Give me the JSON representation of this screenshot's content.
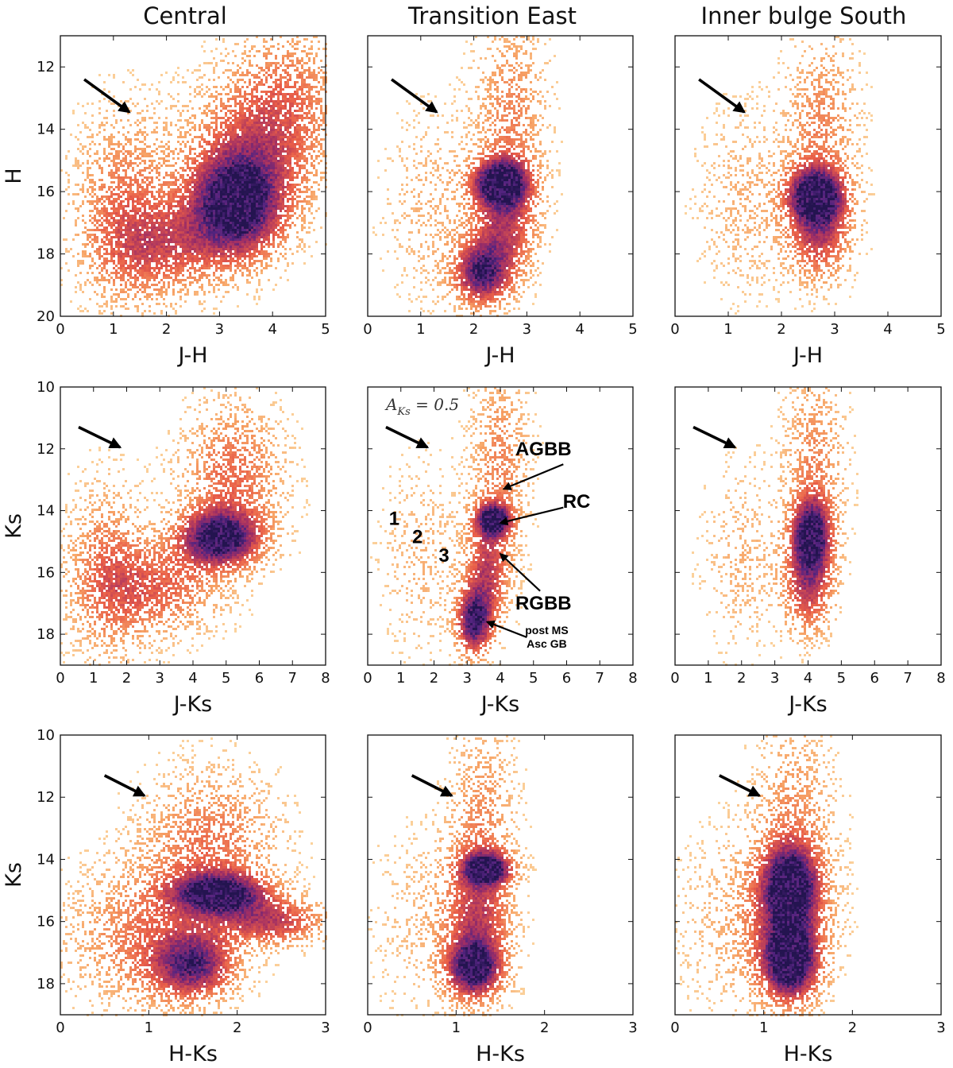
{
  "figure": {
    "columns": [
      "Central",
      "Transition East",
      "Inner bulge South"
    ]
  },
  "colors": {
    "low": "#fbd29d",
    "mid": "#f4843e",
    "high": "#c53a5a",
    "max": "#2a1460",
    "arrow": "#000000"
  },
  "chart_data": [
    {
      "type": "heatmap",
      "region": "Central",
      "row": 0,
      "col": 0,
      "title": "Central",
      "xlabel": "J-H",
      "ylabel": "H",
      "xlim": [
        0,
        5
      ],
      "ylim": [
        20,
        11
      ],
      "xticks": [
        "0",
        "1",
        "2",
        "3",
        "4",
        "5"
      ],
      "xtick_values": [
        0,
        1,
        2,
        3,
        4,
        5
      ],
      "yticks": [
        "12",
        "14",
        "16",
        "18",
        "20"
      ],
      "ytick_values": [
        12,
        14,
        16,
        18,
        20
      ],
      "reddening_vector": {
        "from": [
          0.45,
          12.4
        ],
        "to": [
          1.3,
          13.45
        ]
      },
      "features": [
        {
          "name": "main overdensity",
          "x": 3.3,
          "y": 16.5,
          "dx": 0.6,
          "dy": 1.1,
          "strength": 1.0
        },
        {
          "name": "upper branch",
          "x": 3.6,
          "y": 14.8,
          "dx": 0.8,
          "dy": 1.5,
          "strength": 0.45
        },
        {
          "name": "bright giants",
          "x": 4.3,
          "y": 12.8,
          "dx": 0.7,
          "dy": 1.5,
          "strength": 0.3
        },
        {
          "name": "blue foreground",
          "x": 1.2,
          "y": 16.5,
          "dx": 0.6,
          "dy": 2.0,
          "strength": 0.35
        },
        {
          "name": "intermediate",
          "x": 2.0,
          "y": 17.8,
          "dx": 0.8,
          "dy": 1.0,
          "strength": 0.4
        }
      ]
    },
    {
      "type": "heatmap",
      "region": "Transition East",
      "row": 0,
      "col": 1,
      "title": "Transition East",
      "xlabel": "J-H",
      "ylabel": "",
      "xlim": [
        0,
        5
      ],
      "ylim": [
        20,
        11
      ],
      "xticks": [
        "0",
        "1",
        "2",
        "3",
        "4",
        "5"
      ],
      "xtick_values": [
        0,
        1,
        2,
        3,
        4,
        5
      ],
      "yticks": [],
      "ytick_values": [
        12,
        14,
        16,
        18,
        20
      ],
      "reddening_vector": {
        "from": [
          0.45,
          12.4
        ],
        "to": [
          1.3,
          13.45
        ]
      },
      "features": [
        {
          "name": "red clump",
          "x": 2.5,
          "y": 15.7,
          "dx": 0.35,
          "dy": 0.5,
          "strength": 1.0
        },
        {
          "name": "post MS",
          "x": 2.15,
          "y": 18.6,
          "dx": 0.35,
          "dy": 0.7,
          "strength": 0.85
        },
        {
          "name": "RGB",
          "x": 2.6,
          "y": 17.0,
          "dx": 0.4,
          "dy": 1.2,
          "strength": 0.55
        },
        {
          "name": "upper RGB",
          "x": 2.7,
          "y": 13.5,
          "dx": 0.45,
          "dy": 2.0,
          "strength": 0.3
        },
        {
          "name": "foreground",
          "x": 1.2,
          "y": 16.5,
          "dx": 0.6,
          "dy": 2.0,
          "strength": 0.15
        }
      ]
    },
    {
      "type": "heatmap",
      "region": "Inner bulge South",
      "row": 0,
      "col": 2,
      "title": "Inner bulge South",
      "xlabel": "J-H",
      "ylabel": "",
      "xlim": [
        0,
        5
      ],
      "ylim": [
        20,
        11
      ],
      "xticks": [
        "0",
        "1",
        "2",
        "3",
        "4",
        "5"
      ],
      "xtick_values": [
        0,
        1,
        2,
        3,
        4,
        5
      ],
      "yticks": [],
      "ytick_values": [
        12,
        14,
        16,
        18,
        20
      ],
      "reddening_vector": {
        "from": [
          0.45,
          12.4
        ],
        "to": [
          1.3,
          13.45
        ]
      },
      "features": [
        {
          "name": "red clump",
          "x": 2.65,
          "y": 16.1,
          "dx": 0.35,
          "dy": 0.6,
          "strength": 1.0
        },
        {
          "name": "RGB",
          "x": 2.7,
          "y": 17.3,
          "dx": 0.4,
          "dy": 1.0,
          "strength": 0.55
        },
        {
          "name": "upper RGB",
          "x": 2.75,
          "y": 14.0,
          "dx": 0.45,
          "dy": 2.0,
          "strength": 0.3
        },
        {
          "name": "foreground",
          "x": 1.3,
          "y": 16.3,
          "dx": 0.6,
          "dy": 2.0,
          "strength": 0.15
        }
      ]
    },
    {
      "type": "heatmap",
      "region": "Central",
      "row": 1,
      "col": 0,
      "title": "",
      "xlabel": "J-Ks",
      "ylabel": "Ks",
      "xlim": [
        0,
        8
      ],
      "ylim": [
        19,
        10
      ],
      "xticks": [
        "0",
        "1",
        "2",
        "3",
        "4",
        "5",
        "6",
        "7",
        "8"
      ],
      "xtick_values": [
        0,
        1,
        2,
        3,
        4,
        5,
        6,
        7,
        8
      ],
      "yticks": [
        "10",
        "12",
        "14",
        "16",
        "18"
      ],
      "ytick_values": [
        10,
        12,
        14,
        16,
        18
      ],
      "reddening_vector": {
        "from": [
          0.55,
          11.3
        ],
        "to": [
          1.8,
          11.95
        ]
      },
      "features": [
        {
          "name": "main overdensity",
          "x": 4.8,
          "y": 14.9,
          "dx": 0.8,
          "dy": 0.6,
          "strength": 1.0
        },
        {
          "name": "upper branch",
          "x": 5.2,
          "y": 13.0,
          "dx": 1.0,
          "dy": 1.6,
          "strength": 0.4
        },
        {
          "name": "foreground",
          "x": 1.4,
          "y": 16.0,
          "dx": 0.8,
          "dy": 1.8,
          "strength": 0.35
        },
        {
          "name": "intermediate",
          "x": 3.0,
          "y": 16.5,
          "dx": 1.2,
          "dy": 1.0,
          "strength": 0.4
        }
      ]
    },
    {
      "type": "heatmap",
      "region": "Transition East",
      "row": 1,
      "col": 1,
      "title": "",
      "xlabel": "J-Ks",
      "ylabel": "",
      "xlim": [
        0,
        8
      ],
      "ylim": [
        19,
        10
      ],
      "xticks": [
        "0",
        "1",
        "2",
        "3",
        "4",
        "5",
        "6",
        "7",
        "8"
      ],
      "xtick_values": [
        0,
        1,
        2,
        3,
        4,
        5,
        6,
        7,
        8
      ],
      "yticks": [],
      "ytick_values": [
        10,
        12,
        14,
        16,
        18
      ],
      "reddening_vector": {
        "from": [
          0.55,
          11.3
        ],
        "to": [
          1.8,
          11.95
        ]
      },
      "aks_label": {
        "main": "A",
        "sub": "Ks",
        "rest": " = 0.5"
      },
      "annotations": [
        {
          "label": "AGBB",
          "text_at": [
            5.3,
            12.0
          ],
          "tip": [
            4.1,
            13.3
          ],
          "tail": [
            5.9,
            12.5
          ]
        },
        {
          "label": "RC",
          "text_at": [
            6.3,
            13.7
          ],
          "tip": [
            4.0,
            14.4
          ],
          "tail": [
            5.9,
            13.9
          ]
        },
        {
          "label": "RGBB",
          "text_at": [
            5.3,
            17.0
          ],
          "tip": [
            4.0,
            15.4
          ],
          "tail": [
            5.2,
            16.6
          ]
        },
        {
          "label_lines": [
            "post MS",
            "Asc GB"
          ],
          "text_at": [
            5.4,
            18.0
          ],
          "tip": [
            3.6,
            17.6
          ],
          "tail": [
            4.8,
            18.1
          ]
        }
      ],
      "sequence_labels": [
        {
          "label": "1",
          "at": [
            0.8,
            14.25
          ]
        },
        {
          "label": "2",
          "at": [
            1.5,
            14.85
          ]
        },
        {
          "label": "3",
          "at": [
            2.3,
            15.45
          ]
        }
      ],
      "features": [
        {
          "name": "red clump",
          "x": 3.8,
          "y": 14.3,
          "dx": 0.35,
          "dy": 0.35,
          "strength": 1.0
        },
        {
          "name": "post MS",
          "x": 3.2,
          "y": 17.6,
          "dx": 0.35,
          "dy": 0.7,
          "strength": 0.9
        },
        {
          "name": "RGB",
          "x": 3.6,
          "y": 16.0,
          "dx": 0.45,
          "dy": 1.2,
          "strength": 0.55
        },
        {
          "name": "upper RGB",
          "x": 4.0,
          "y": 12.5,
          "dx": 0.6,
          "dy": 2.0,
          "strength": 0.3
        },
        {
          "name": "foreground",
          "x": 1.6,
          "y": 15.5,
          "dx": 0.8,
          "dy": 2.0,
          "strength": 0.15
        }
      ]
    },
    {
      "type": "heatmap",
      "region": "Inner bulge South",
      "row": 1,
      "col": 2,
      "title": "",
      "xlabel": "J-Ks",
      "ylabel": "",
      "xlim": [
        0,
        8
      ],
      "ylim": [
        19,
        10
      ],
      "xticks": [
        "0",
        "1",
        "2",
        "3",
        "4",
        "5",
        "6",
        "7",
        "8"
      ],
      "xtick_values": [
        0,
        1,
        2,
        3,
        4,
        5,
        6,
        7,
        8
      ],
      "yticks": [],
      "ytick_values": [
        10,
        12,
        14,
        16,
        18
      ],
      "reddening_vector": {
        "from": [
          0.55,
          11.3
        ],
        "to": [
          1.8,
          11.95
        ]
      },
      "features": [
        {
          "name": "red clump",
          "x": 4.1,
          "y": 14.8,
          "dx": 0.4,
          "dy": 0.8,
          "strength": 1.0
        },
        {
          "name": "RGB",
          "x": 4.0,
          "y": 16.5,
          "dx": 0.5,
          "dy": 1.0,
          "strength": 0.55
        },
        {
          "name": "upper RGB",
          "x": 4.2,
          "y": 12.5,
          "dx": 0.6,
          "dy": 2.0,
          "strength": 0.3
        },
        {
          "name": "foreground",
          "x": 2.0,
          "y": 15.5,
          "dx": 0.8,
          "dy": 2.0,
          "strength": 0.15
        }
      ]
    },
    {
      "type": "heatmap",
      "region": "Central",
      "row": 2,
      "col": 0,
      "title": "",
      "xlabel": "H-Ks",
      "ylabel": "Ks",
      "xlim": [
        0,
        3
      ],
      "ylim": [
        19,
        10
      ],
      "xticks": [
        "0",
        "1",
        "2",
        "3"
      ],
      "xtick_values": [
        0,
        1,
        2,
        3
      ],
      "yticks": [
        "10",
        "12",
        "14",
        "16",
        "18"
      ],
      "ytick_values": [
        10,
        12,
        14,
        16,
        18
      ],
      "reddening_vector": {
        "from": [
          0.5,
          11.3
        ],
        "to": [
          0.95,
          11.95
        ]
      },
      "features": [
        {
          "name": "bar feature",
          "x": 1.8,
          "y": 15.1,
          "dx": 0.35,
          "dy": 0.45,
          "strength": 1.0
        },
        {
          "name": "tail",
          "x": 2.4,
          "y": 16.0,
          "dx": 0.4,
          "dy": 0.5,
          "strength": 0.55
        },
        {
          "name": "lower blob",
          "x": 1.5,
          "y": 17.4,
          "dx": 0.3,
          "dy": 0.7,
          "strength": 0.75
        },
        {
          "name": "upper halo",
          "x": 1.7,
          "y": 13.5,
          "dx": 0.5,
          "dy": 1.5,
          "strength": 0.35
        },
        {
          "name": "broad",
          "x": 1.0,
          "y": 16.5,
          "dx": 0.6,
          "dy": 1.5,
          "strength": 0.35
        }
      ]
    },
    {
      "type": "heatmap",
      "region": "Transition East",
      "row": 2,
      "col": 1,
      "title": "",
      "xlabel": "H-Ks",
      "ylabel": "",
      "xlim": [
        0,
        3
      ],
      "ylim": [
        19,
        10
      ],
      "xticks": [
        "0",
        "1",
        "2",
        "3"
      ],
      "xtick_values": [
        0,
        1,
        2,
        3
      ],
      "yticks": [],
      "ytick_values": [
        10,
        12,
        14,
        16,
        18
      ],
      "reddening_vector": {
        "from": [
          0.5,
          11.3
        ],
        "to": [
          0.95,
          11.95
        ]
      },
      "features": [
        {
          "name": "red clump",
          "x": 1.35,
          "y": 14.3,
          "dx": 0.18,
          "dy": 0.35,
          "strength": 1.0
        },
        {
          "name": "post MS",
          "x": 1.2,
          "y": 17.5,
          "dx": 0.2,
          "dy": 0.6,
          "strength": 0.9
        },
        {
          "name": "column",
          "x": 1.25,
          "y": 16.0,
          "dx": 0.25,
          "dy": 1.5,
          "strength": 0.5
        },
        {
          "name": "upper",
          "x": 1.3,
          "y": 12.5,
          "dx": 0.25,
          "dy": 2.0,
          "strength": 0.25
        },
        {
          "name": "foreground",
          "x": 0.7,
          "y": 16.0,
          "dx": 0.45,
          "dy": 2.0,
          "strength": 0.12
        }
      ]
    },
    {
      "type": "heatmap",
      "region": "Inner bulge South",
      "row": 2,
      "col": 2,
      "title": "",
      "xlabel": "H-Ks",
      "ylabel": "",
      "xlim": [
        0,
        3
      ],
      "ylim": [
        19,
        10
      ],
      "xticks": [
        "0",
        "1",
        "2",
        "3"
      ],
      "xtick_values": [
        0,
        1,
        2,
        3
      ],
      "yticks": [],
      "ytick_values": [
        10,
        12,
        14,
        16,
        18
      ],
      "reddening_vector": {
        "from": [
          0.5,
          11.3
        ],
        "to": [
          0.95,
          11.95
        ]
      },
      "features": [
        {
          "name": "clump",
          "x": 1.3,
          "y": 14.8,
          "dx": 0.2,
          "dy": 0.8,
          "strength": 0.9
        },
        {
          "name": "lower",
          "x": 1.3,
          "y": 17.3,
          "dx": 0.2,
          "dy": 0.8,
          "strength": 1.0
        },
        {
          "name": "column",
          "x": 1.3,
          "y": 16.0,
          "dx": 0.3,
          "dy": 1.5,
          "strength": 0.5
        },
        {
          "name": "upper",
          "x": 1.35,
          "y": 12.5,
          "dx": 0.3,
          "dy": 2.0,
          "strength": 0.25
        },
        {
          "name": "foreground",
          "x": 0.7,
          "y": 16.0,
          "dx": 0.45,
          "dy": 2.0,
          "strength": 0.15
        }
      ]
    }
  ]
}
